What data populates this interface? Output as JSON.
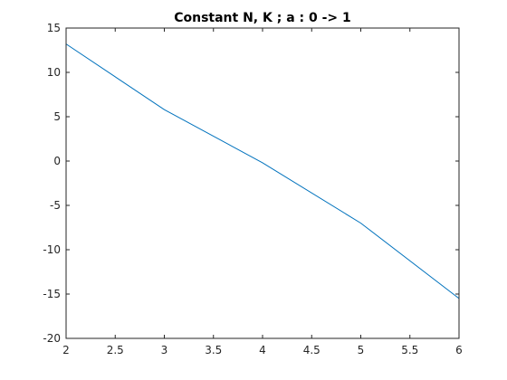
{
  "chart_data": {
    "type": "line",
    "title": "Constant N, K ;  a : 0 -> 1",
    "xlabel": "",
    "ylabel": "",
    "xlim": [
      2,
      6
    ],
    "ylim": [
      -20,
      15
    ],
    "xticks": [
      2,
      2.5,
      3,
      3.5,
      4,
      4.5,
      5,
      5.5,
      6
    ],
    "xtick_labels": [
      "2",
      "2.5",
      "3",
      "3.5",
      "4",
      "4.5",
      "5",
      "5.5",
      "6"
    ],
    "yticks": [
      -20,
      -15,
      -10,
      -5,
      0,
      5,
      10,
      15
    ],
    "ytick_labels": [
      "-20",
      "-15",
      "-10",
      "-5",
      "0",
      "5",
      "10",
      "15"
    ],
    "grid": false,
    "series": [
      {
        "color": "#0072bd",
        "x": [
          2,
          3,
          4,
          5,
          6
        ],
        "y": [
          13.2,
          5.8,
          -0.2,
          -7.0,
          -15.5
        ]
      }
    ]
  }
}
